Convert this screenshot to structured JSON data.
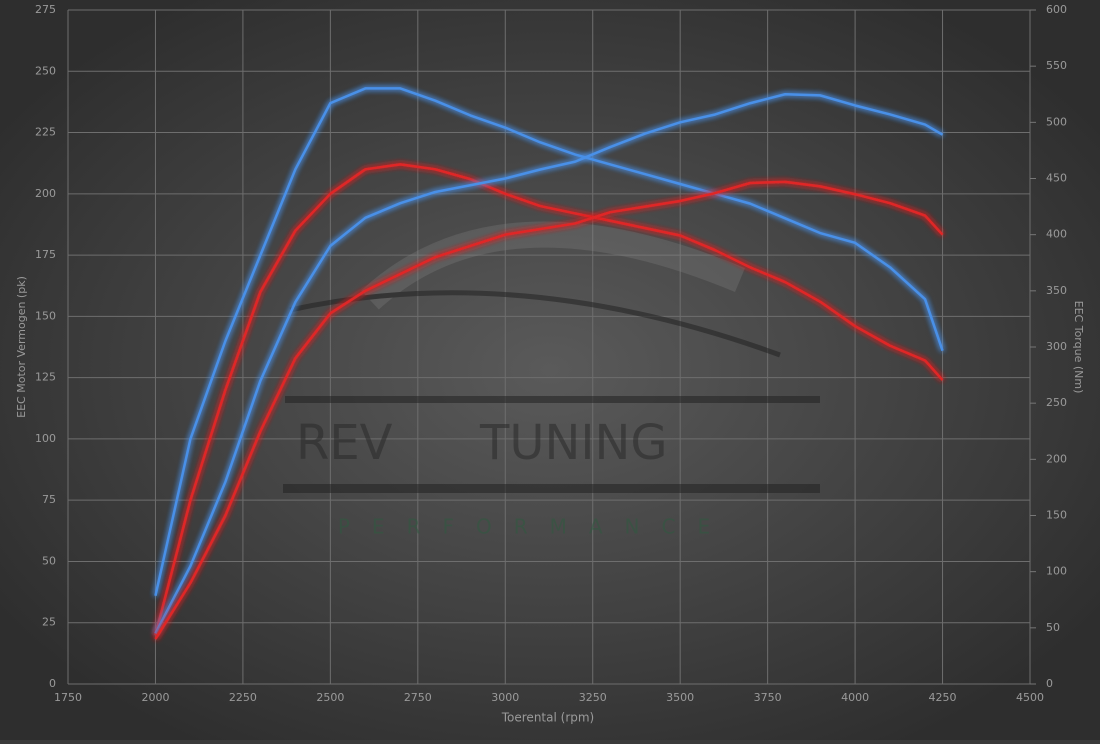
{
  "chart_data": {
    "type": "line",
    "x_label": "Toerental (rpm)",
    "y_label": "EEC Motor Vermogen (pk)",
    "y2_label": "EEC Torque (Nm)",
    "x": [
      2000,
      2100,
      2200,
      2300,
      2400,
      2500,
      2600,
      2700,
      2800,
      2900,
      3000,
      3100,
      3200,
      3300,
      3400,
      3500,
      3600,
      3700,
      3800,
      3900,
      4000,
      4100,
      4200,
      4250
    ],
    "series": [
      {
        "color": "#4a90e8",
        "values": [
          36,
          100,
          140,
          175,
          210,
          237,
          243,
          243,
          238,
          232,
          227,
          221,
          216,
          212,
          208,
          204,
          200,
          196,
          190,
          184,
          180,
          170,
          157,
          136
        ]
      },
      {
        "color": "#e02828",
        "values": [
          20,
          75,
          120,
          160,
          185,
          200,
          210,
          212,
          210,
          206,
          200,
          195,
          192,
          189,
          186,
          183,
          177,
          170,
          164,
          156,
          146,
          138,
          132,
          124
        ]
      },
      {
        "color": "#4a90e8",
        "axis": "y2",
        "values": [
          45,
          105,
          180,
          270,
          340,
          390,
          415,
          428,
          438,
          444,
          450,
          458,
          465,
          478,
          490,
          500,
          507,
          517,
          525,
          524,
          515,
          507,
          498,
          489
        ]
      },
      {
        "color": "#e02828",
        "axis": "y2",
        "values": [
          40,
          90,
          150,
          225,
          290,
          330,
          350,
          365,
          380,
          390,
          400,
          405,
          410,
          420,
          425,
          430,
          437,
          446,
          447,
          443,
          436,
          428,
          417,
          400
        ]
      }
    ],
    "xlim": [
      1750,
      4500
    ],
    "xticks": [
      1750,
      2000,
      2250,
      2500,
      2750,
      3000,
      3250,
      3500,
      3750,
      4000,
      4250,
      4500
    ],
    "ylim": [
      0,
      275
    ],
    "yticks": [
      0,
      25,
      50,
      75,
      100,
      125,
      150,
      175,
      200,
      225,
      250,
      275
    ],
    "y2lim": [
      0,
      600
    ],
    "y2ticks": [
      0,
      50,
      100,
      150,
      200,
      250,
      300,
      350,
      400,
      450,
      500,
      550,
      600
    ],
    "grid": true,
    "watermark": {
      "left": "REV",
      "right": "TUNING",
      "sub": "PERFORMANCE"
    }
  }
}
